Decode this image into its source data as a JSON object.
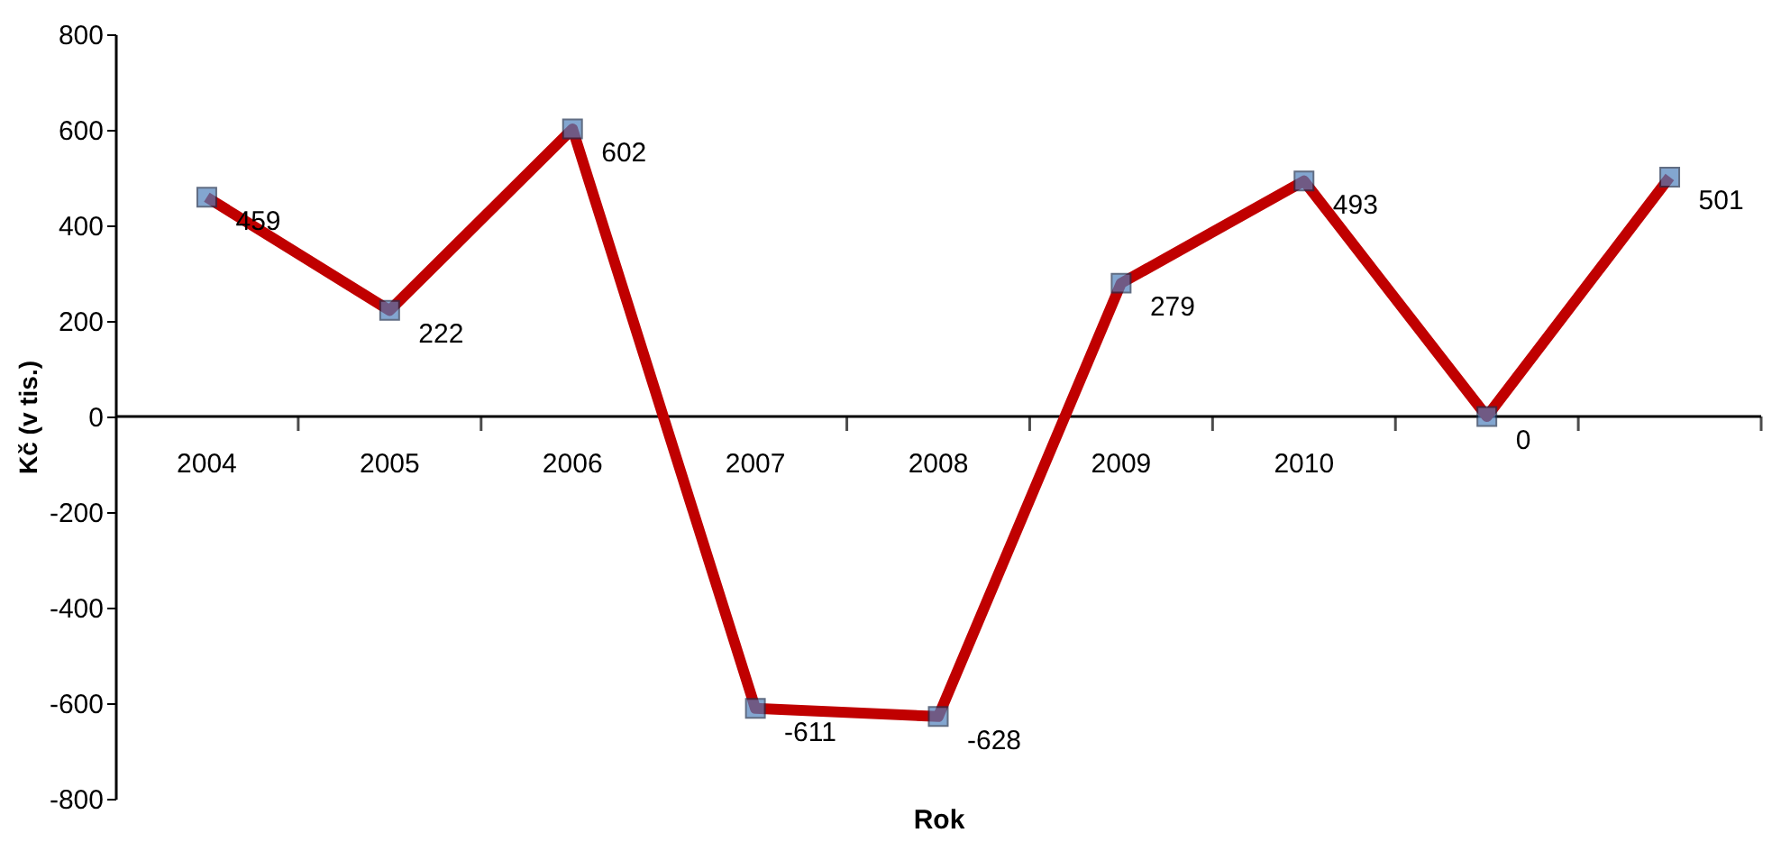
{
  "chart_data": {
    "type": "line",
    "xlabel": "Rok",
    "ylabel": "Kč (v tis.)",
    "categories": [
      "2004",
      "2005",
      "2006",
      "2007",
      "2008",
      "2009",
      "2010",
      null,
      null
    ],
    "series": [
      {
        "color": "#c00000",
        "values": [
          459,
          222,
          602,
          -611,
          -628,
          279,
          493,
          0,
          501
        ]
      }
    ],
    "ylim": [
      -800,
      800
    ],
    "yticks": [
      -800,
      -600,
      -400,
      -200,
      0,
      200,
      400,
      600,
      800
    ],
    "marker": "square",
    "data_labels": true,
    "grid": false
  }
}
